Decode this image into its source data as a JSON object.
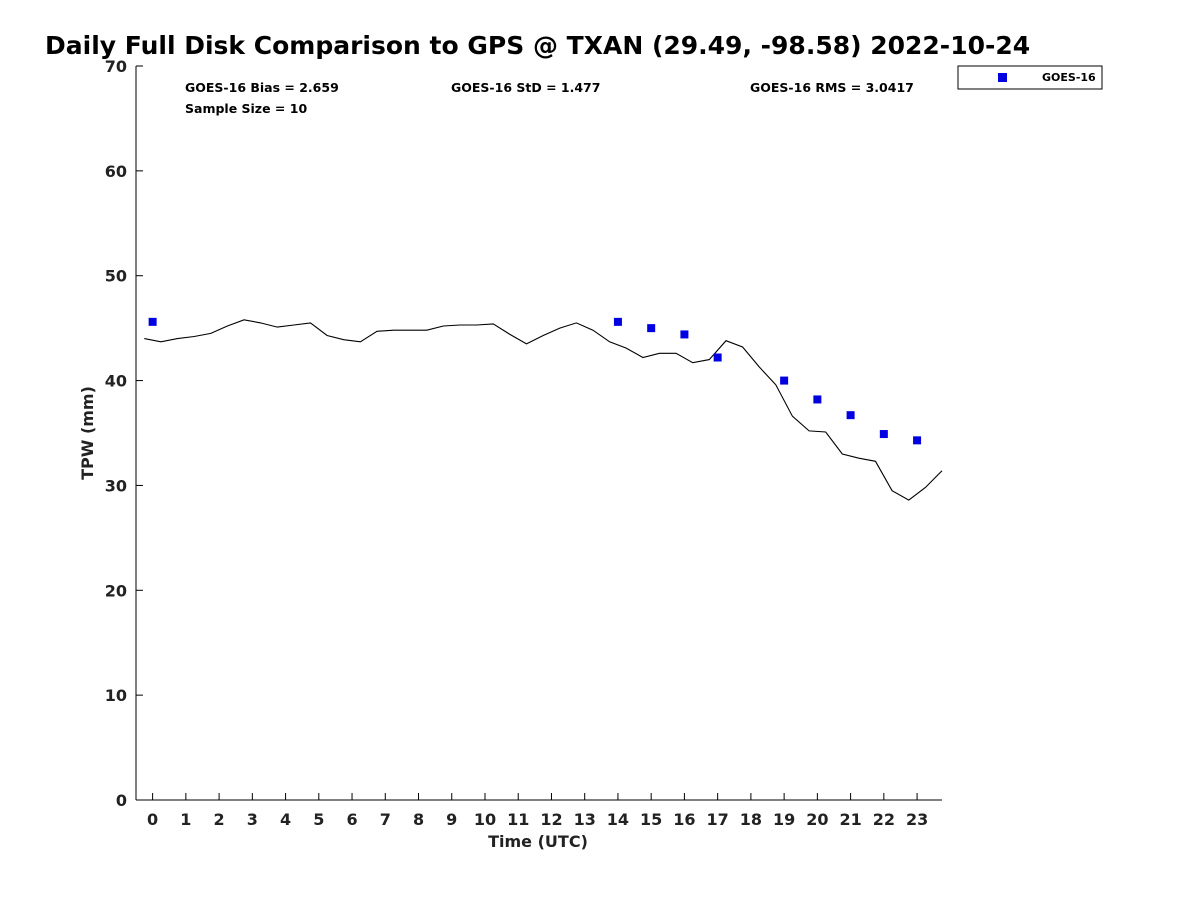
{
  "chart_data": {
    "type": "scatter",
    "title": "Daily Full Disk Comparison to GPS @ TXAN (29.49, -98.58) 2022-10-24",
    "xlabel": "Time (UTC)",
    "ylabel": "TPW (mm)",
    "xlim": [
      -0.5,
      23.75
    ],
    "ylim": [
      0,
      70
    ],
    "x_ticks": [
      "0",
      "1",
      "2",
      "3",
      "4",
      "5",
      "6",
      "7",
      "8",
      "9",
      "10",
      "11",
      "12",
      "13",
      "14",
      "15",
      "16",
      "17",
      "18",
      "19",
      "20",
      "21",
      "22",
      "23"
    ],
    "y_ticks": [
      "0",
      "10",
      "20",
      "30",
      "40",
      "50",
      "60",
      "70"
    ],
    "grid": false,
    "legend_position": "top-right",
    "colors": {
      "goes16": "#0000e0",
      "gps_line": "#000000"
    },
    "stats": {
      "bias": "GOES-16 Bias = 2.659",
      "std": "GOES-16 StD = 1.477",
      "rms": "GOES-16 RMS = 3.0417",
      "sample": "Sample Size = 10"
    },
    "series": [
      {
        "name": "GOES-16",
        "style": "square-markers",
        "x": [
          0,
          14,
          15,
          16,
          17,
          19,
          20,
          21,
          22,
          23
        ],
        "y": [
          45.6,
          45.6,
          45.0,
          44.4,
          42.2,
          40.0,
          38.2,
          36.7,
          34.9,
          34.3
        ]
      },
      {
        "style": "line",
        "x": [
          -0.25,
          0.25,
          0.75,
          1.25,
          1.75,
          2.25,
          2.75,
          3.25,
          3.75,
          4.25,
          4.75,
          5.25,
          5.75,
          6.25,
          6.75,
          7.25,
          7.75,
          8.25,
          8.75,
          9.25,
          9.75,
          10.25,
          10.75,
          11.25,
          11.75,
          12.25,
          12.75,
          13.25,
          13.75,
          14.25,
          14.75,
          15.25,
          15.75,
          16.25,
          16.75,
          17.25,
          17.75,
          18.25,
          18.75,
          19.25,
          19.75,
          20.25,
          20.75,
          21.25,
          21.75,
          22.25,
          22.75,
          23.25,
          23.75
        ],
        "y": [
          44.0,
          43.7,
          44.0,
          44.2,
          44.5,
          45.2,
          45.8,
          45.5,
          45.1,
          45.3,
          45.5,
          44.3,
          43.9,
          43.7,
          44.7,
          44.8,
          44.8,
          44.8,
          45.2,
          45.3,
          45.3,
          45.4,
          44.4,
          43.5,
          44.3,
          45.0,
          45.5,
          44.8,
          43.7,
          43.1,
          42.2,
          42.6,
          42.6,
          41.7,
          42.0,
          43.8,
          43.2,
          41.3,
          39.6,
          36.6,
          35.2,
          35.1,
          33.0,
          32.6,
          32.3,
          29.5,
          28.6,
          29.8,
          31.4
        ]
      }
    ]
  }
}
